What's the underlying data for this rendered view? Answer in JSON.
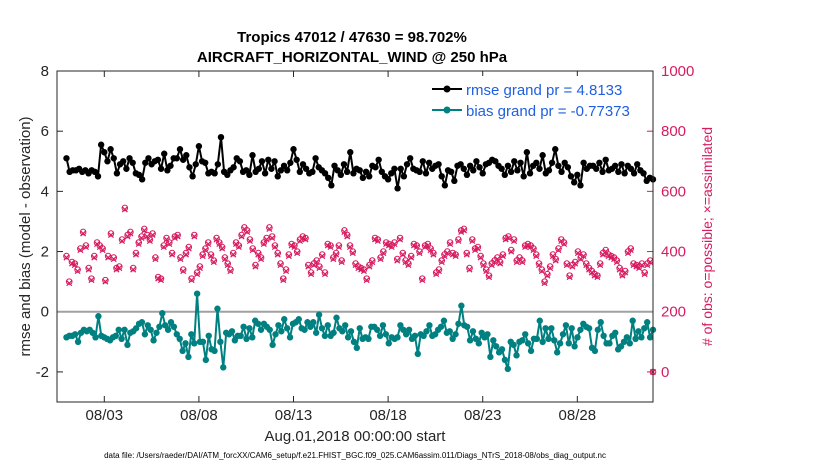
{
  "chart_data": {
    "type": "line",
    "title": "Tropics 47012 / 47630 = 98.702%",
    "subtitle": "AIRCRAFT_HORIZONTAL_WIND @ 250 hPa",
    "xlabel": "Aug.01,2018 00:00:00 start",
    "ylabel_left": "rmse and bias (model - observation)",
    "ylabel_right": "# of obs: o=possible; ×=assimilated",
    "ylim_left": [
      -3,
      8
    ],
    "ylim_right": [
      -100,
      1000
    ],
    "xlim": [
      0.5,
      32.0
    ],
    "left_ticks": [
      {
        "value": -2,
        "label": "-2"
      },
      {
        "value": 0,
        "label": "0"
      },
      {
        "value": 2,
        "label": "2"
      },
      {
        "value": 4,
        "label": "4"
      },
      {
        "value": 6,
        "label": "6"
      },
      {
        "value": 8,
        "label": "8"
      }
    ],
    "right_ticks": [
      {
        "value": 0,
        "label": "0"
      },
      {
        "value": 200,
        "label": "200"
      },
      {
        "value": 400,
        "label": "400"
      },
      {
        "value": 600,
        "label": "600"
      },
      {
        "value": 800,
        "label": "800"
      },
      {
        "value": 1000,
        "label": "1000"
      }
    ],
    "x_ticks": [
      {
        "value": 3,
        "label": "08/03"
      },
      {
        "value": 8,
        "label": "08/08"
      },
      {
        "value": 13,
        "label": "08/13"
      },
      {
        "value": 18,
        "label": "08/18"
      },
      {
        "value": 23,
        "label": "08/23"
      },
      {
        "value": 28,
        "label": "08/28"
      }
    ],
    "series": [
      {
        "name": "rmse",
        "legend": "rmse grand pr = 4.8133",
        "color": "#000000",
        "axis": "left",
        "values": [
          5.1,
          4.65,
          4.7,
          4.7,
          4.75,
          4.65,
          4.7,
          4.6,
          4.7,
          4.65,
          4.5,
          5.55,
          5.3,
          5.0,
          5.4,
          5.1,
          4.6,
          4.9,
          5.0,
          4.75,
          5.1,
          4.95,
          4.6,
          4.55,
          4.4,
          4.95,
          5.1,
          4.9,
          5.0,
          5.05,
          4.75,
          5.25,
          4.7,
          4.85,
          5.1,
          5.1,
          5.4,
          5.05,
          5.2,
          4.8,
          4.5,
          4.9,
          5.5,
          5.0,
          4.95,
          4.6,
          4.65,
          4.6,
          4.9,
          5.8,
          4.65,
          4.55,
          4.7,
          4.8,
          5.1,
          5.0,
          4.65,
          4.7,
          4.55,
          5.2,
          4.65,
          4.75,
          5.0,
          4.6,
          5.05,
          4.75,
          5.0,
          4.5,
          4.7,
          4.85,
          4.7,
          4.95,
          5.4,
          5.05,
          4.65,
          4.9,
          4.75,
          4.6,
          4.65,
          5.1,
          4.8,
          4.7,
          4.6,
          4.45,
          4.2,
          4.85,
          4.7,
          4.55,
          4.9,
          4.65,
          5.3,
          4.6,
          4.75,
          4.7,
          4.45,
          4.65,
          4.5,
          4.85,
          4.8,
          5.05,
          4.65,
          4.5,
          4.4,
          4.6,
          4.75,
          4.1,
          4.75,
          4.5,
          4.9,
          5.1,
          4.75,
          4.7,
          4.65,
          5.0,
          4.6,
          4.95,
          4.75,
          4.85,
          4.9,
          4.5,
          4.2,
          4.7,
          4.65,
          4.35,
          4.85,
          4.9,
          4.75,
          4.55,
          4.85,
          4.7,
          5.0,
          4.8,
          4.6,
          4.9,
          4.95,
          5.05,
          5.0,
          4.85,
          4.75,
          4.55,
          4.85,
          4.65,
          5.0,
          4.7,
          4.95,
          4.5,
          5.3,
          4.6,
          4.85,
          4.95,
          4.75,
          5.2,
          4.6,
          4.7,
          4.95,
          5.4,
          4.85,
          4.65,
          4.95,
          4.8,
          4.5,
          4.3,
          4.55,
          4.2,
          4.95,
          4.75,
          4.85,
          4.85,
          4.75,
          4.95,
          4.65,
          5.05,
          4.7,
          4.75,
          4.85,
          4.65,
          4.9,
          4.6,
          4.85,
          4.75,
          4.6,
          4.9,
          4.7,
          4.6,
          4.35,
          4.45,
          4.4
        ]
      },
      {
        "name": "bias",
        "legend": "bias grand pr = -0.77373",
        "color": "#008080",
        "axis": "left",
        "values": [
          -0.85,
          -0.8,
          -0.8,
          -0.75,
          -1.0,
          -0.7,
          -0.6,
          -0.65,
          -0.6,
          -0.7,
          -0.85,
          -0.15,
          -0.8,
          -0.85,
          -0.9,
          -0.95,
          -0.85,
          -0.8,
          -0.6,
          -0.9,
          -0.6,
          -1.1,
          -0.7,
          -0.65,
          -0.55,
          -0.4,
          -0.35,
          -0.75,
          -0.45,
          -0.6,
          -0.95,
          -0.7,
          -0.5,
          -0.05,
          -0.45,
          -0.6,
          -0.35,
          -0.5,
          -0.75,
          -0.9,
          -1.3,
          -1.05,
          -1.5,
          -0.75,
          -1.05,
          0.6,
          -1.0,
          -1.0,
          -1.6,
          -0.8,
          -1.25,
          -1.3,
          0.1,
          -1.0,
          -1.85,
          -0.7,
          -0.75,
          -0.65,
          -0.95,
          -0.8,
          -0.8,
          -0.5,
          -0.9,
          -0.55,
          -0.85,
          -0.3,
          -0.4,
          -0.6,
          -0.4,
          -0.5,
          -0.6,
          -1.1,
          -0.75,
          -0.45,
          -0.65,
          -0.25,
          -0.55,
          -0.85,
          -0.4,
          -0.35,
          -0.25,
          -0.55,
          -0.6,
          -0.35,
          -0.5,
          -0.35,
          -0.7,
          -0.1,
          -0.55,
          -0.8,
          -0.45,
          -0.8,
          -0.7,
          -0.2,
          -0.55,
          -0.65,
          -0.45,
          -0.85,
          -0.65,
          -1.0,
          -1.2,
          -0.55,
          -0.9,
          -0.85,
          -0.9,
          -0.5,
          -0.5,
          -0.6,
          -0.8,
          -0.45,
          -0.75,
          -1.05,
          -0.85,
          -0.9,
          -0.85,
          -0.45,
          -0.6,
          -0.75,
          -0.6,
          -0.9,
          -0.8,
          -1.4,
          -0.75,
          -0.8,
          -0.65,
          -0.45,
          -0.8,
          -0.75,
          -0.6,
          -0.5,
          -0.3,
          -0.7,
          -0.65,
          -0.9,
          -0.75,
          -0.4,
          0.2,
          -0.45,
          -0.5,
          -0.95,
          -0.65,
          -0.9,
          -1.05,
          -0.7,
          -0.85,
          -0.75,
          -1.5,
          -0.95,
          -1.15,
          -1.35,
          -1.25,
          -1.6,
          -1.9,
          -1.0,
          -1.1,
          -1.45,
          -1.0,
          -0.95,
          -0.75,
          -1.05,
          -1.3,
          -0.9,
          -0.9,
          -0.3,
          -1.0,
          -0.55,
          -0.9,
          -0.55,
          -0.95,
          -1.35,
          -1.05,
          -0.75,
          -0.45,
          -1.05,
          -0.55,
          -1.15,
          -0.85,
          -0.6,
          -0.4,
          -0.5,
          -0.55,
          -1.2,
          -1.3,
          -0.6,
          -0.35,
          -0.8,
          -1.05,
          -1.05,
          -0.8,
          -0.7,
          -1.25,
          -1.15,
          -1.0,
          -0.85,
          -1.05,
          -0.3,
          -0.9,
          -0.65,
          -0.85,
          -0.55,
          -0.35,
          -0.85,
          -0.6
        ]
      },
      {
        "name": "obs_possible",
        "marker": "o",
        "color": "#d81b60",
        "axis": "right",
        "values": [
          385,
          300,
          365,
          360,
          340,
          410,
          465,
          420,
          345,
          310,
          385,
          430,
          420,
          410,
          305,
          385,
          460,
          380,
          345,
          350,
          440,
          545,
          455,
          465,
          345,
          395,
          430,
          450,
          475,
          455,
          440,
          460,
          380,
          315,
          310,
          420,
          445,
          430,
          395,
          450,
          455,
          380,
          340,
          395,
          415,
          310,
          455,
          330,
          350,
          390,
          410,
          430,
          390,
          370,
          445,
          430,
          415,
          380,
          360,
          340,
          395,
          430,
          420,
          455,
          480,
          470,
          440,
          410,
          355,
          395,
          380,
          430,
          445,
          480,
          450,
          420,
          395,
          360,
          310,
          340,
          390,
          425,
          420,
          400,
          440,
          450,
          445,
          355,
          330,
          360,
          370,
          350,
          390,
          330,
          425,
          420,
          380,
          395,
          420,
          370,
          470,
          455,
          420,
          400,
          360,
          350,
          345,
          340,
          310,
          355,
          370,
          445,
          440,
          380,
          400,
          430,
          425,
          420,
          430,
          375,
          445,
          395,
          370,
          360,
          385,
          425,
          420,
          400,
          310,
          420,
          425,
          410,
          395,
          330,
          340,
          370,
          390,
          400,
          430,
          395,
          390,
          440,
          470,
          475,
          395,
          345,
          440,
          410,
          415,
          385,
          360,
          340,
          320,
          360,
          370,
          380,
          365,
          390,
          445,
          450,
          405,
          440,
          370,
          380,
          370,
          420,
          425,
          420,
          410,
          390,
          360,
          340,
          300,
          325,
          350,
          390,
          375,
          410,
          440,
          430,
          360,
          320,
          355,
          365,
          400,
          380,
          390,
          360,
          345,
          335,
          325,
          320,
          360,
          395,
          405,
          390,
          385,
          380,
          370,
          345,
          325,
          335,
          400,
          410,
          360,
          355,
          350,
          360,
          330,
          360,
          370,
          0
        ]
      },
      {
        "name": "obs_assimilated",
        "marker": "x",
        "color": "#d81b60",
        "axis": "right",
        "values": [
          380,
          295,
          360,
          355,
          335,
          405,
          460,
          415,
          340,
          305,
          380,
          425,
          415,
          405,
          300,
          380,
          455,
          375,
          340,
          345,
          435,
          540,
          450,
          460,
          340,
          390,
          425,
          445,
          470,
          450,
          435,
          455,
          375,
          310,
          305,
          415,
          440,
          425,
          390,
          445,
          450,
          375,
          335,
          390,
          410,
          305,
          450,
          325,
          345,
          385,
          405,
          425,
          385,
          365,
          440,
          425,
          410,
          375,
          355,
          335,
          390,
          425,
          415,
          450,
          475,
          465,
          435,
          405,
          350,
          390,
          375,
          425,
          440,
          475,
          445,
          415,
          390,
          355,
          305,
          335,
          385,
          420,
          415,
          395,
          435,
          445,
          440,
          350,
          325,
          355,
          365,
          345,
          385,
          325,
          420,
          415,
          375,
          390,
          415,
          365,
          465,
          450,
          415,
          395,
          355,
          345,
          340,
          335,
          305,
          350,
          365,
          440,
          435,
          375,
          395,
          425,
          420,
          415,
          425,
          370,
          440,
          390,
          365,
          355,
          380,
          420,
          415,
          395,
          305,
          415,
          420,
          405,
          390,
          325,
          335,
          365,
          385,
          395,
          425,
          390,
          385,
          435,
          465,
          470,
          390,
          340,
          435,
          405,
          410,
          380,
          355,
          335,
          315,
          355,
          365,
          375,
          360,
          385,
          440,
          445,
          400,
          435,
          365,
          375,
          365,
          415,
          420,
          415,
          405,
          385,
          355,
          335,
          295,
          320,
          345,
          385,
          370,
          405,
          435,
          425,
          355,
          315,
          350,
          360,
          395,
          375,
          385,
          355,
          340,
          330,
          320,
          315,
          355,
          390,
          400,
          385,
          380,
          375,
          365,
          340,
          320,
          330,
          395,
          405,
          355,
          350,
          345,
          355,
          325,
          355,
          365,
          0
        ]
      }
    ],
    "footnote": "data file: /Users/raeder/DAI/ATM_forcXX/CAM6_setup/f.e21.FHIST_BGC.f09_025.CAM6assim.011/Diags_NTrS_2018-08/obs_diag_output.nc"
  }
}
